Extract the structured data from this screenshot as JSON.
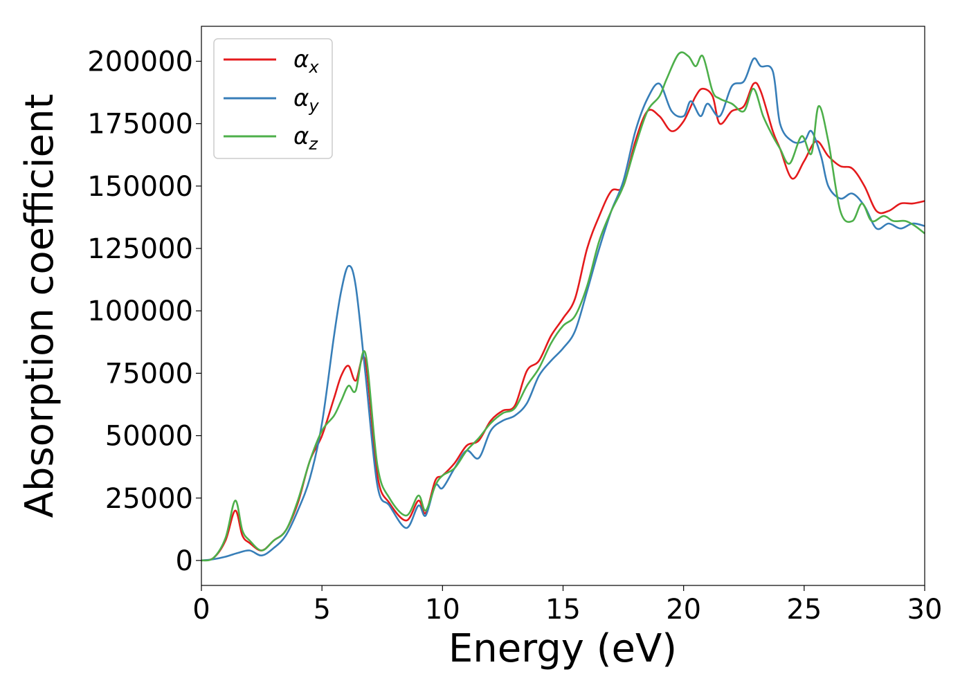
{
  "chart_data": {
    "type": "line",
    "title": "",
    "xlabel": "Energy (eV)",
    "ylabel": "Absorption coefficient",
    "xlim": [
      0,
      30
    ],
    "ylim": [
      -10000,
      214000
    ],
    "xticks": [
      0,
      5,
      10,
      15,
      20,
      25,
      30
    ],
    "yticks": [
      0,
      25000,
      50000,
      75000,
      100000,
      125000,
      150000,
      175000,
      200000
    ],
    "grid": false,
    "legend_position": "upper-left",
    "series": [
      {
        "name": "α",
        "subscript": "x",
        "color": "#e41a1c",
        "x": [
          0,
          0.5,
          1.0,
          1.4,
          1.7,
          2.0,
          2.5,
          3.0,
          3.5,
          4.0,
          4.5,
          5.0,
          5.5,
          5.8,
          6.1,
          6.4,
          6.8,
          7.3,
          7.8,
          8.5,
          9.0,
          9.3,
          9.7,
          10.0,
          10.5,
          11.0,
          11.5,
          12.0,
          12.5,
          13.0,
          13.5,
          14.0,
          14.5,
          15.0,
          15.5,
          16.0,
          16.5,
          17.0,
          17.5,
          18.0,
          18.5,
          19.0,
          19.5,
          20.0,
          20.5,
          20.8,
          21.2,
          21.5,
          22.0,
          22.5,
          22.9,
          23.2,
          23.7,
          24.0,
          24.5,
          25.0,
          25.5,
          26.0,
          26.5,
          27.0,
          27.5,
          28.0,
          28.5,
          29.0,
          29.5,
          30.0
        ],
        "y": [
          0,
          1000,
          8000,
          20000,
          10000,
          7000,
          4000,
          8000,
          12000,
          23000,
          40000,
          50000,
          65000,
          74000,
          78000,
          72000,
          80000,
          34000,
          23000,
          16000,
          24000,
          19000,
          32000,
          34000,
          39000,
          46000,
          48000,
          56000,
          60000,
          62000,
          76000,
          80000,
          90000,
          97000,
          105000,
          125000,
          138000,
          148000,
          150000,
          168000,
          180000,
          178000,
          172000,
          176000,
          186000,
          189000,
          186000,
          175000,
          180000,
          182000,
          191000,
          188000,
          172000,
          165000,
          153000,
          160000,
          168000,
          162000,
          158000,
          157000,
          150000,
          140000,
          140000,
          143000,
          143000,
          144000
        ]
      },
      {
        "name": "α",
        "subscript": "y",
        "color": "#377eb8",
        "x": [
          0,
          0.5,
          1.0,
          1.5,
          2.0,
          2.5,
          3.0,
          3.5,
          4.0,
          4.5,
          5.0,
          5.5,
          5.8,
          6.1,
          6.4,
          6.8,
          7.3,
          7.8,
          8.5,
          9.0,
          9.3,
          9.7,
          10.0,
          10.5,
          11.0,
          11.5,
          12.0,
          12.5,
          13.0,
          13.5,
          14.0,
          14.5,
          15.0,
          15.5,
          16.0,
          16.5,
          17.0,
          17.5,
          18.0,
          18.5,
          19.0,
          19.5,
          20.0,
          20.3,
          20.7,
          21.0,
          21.5,
          22.0,
          22.5,
          22.9,
          23.2,
          23.7,
          24.0,
          24.5,
          25.0,
          25.3,
          25.7,
          26.0,
          26.5,
          27.0,
          27.5,
          28.0,
          28.5,
          29.0,
          29.5,
          30.0
        ],
        "y": [
          0,
          500,
          1500,
          3000,
          4000,
          2000,
          5000,
          10000,
          20000,
          33000,
          55000,
          90000,
          108000,
          118000,
          110000,
          75000,
          30000,
          22000,
          13000,
          22000,
          18000,
          30000,
          29000,
          37000,
          44000,
          41000,
          52000,
          56000,
          58000,
          63000,
          74000,
          80000,
          85000,
          92000,
          108000,
          125000,
          140000,
          152000,
          172000,
          185000,
          191000,
          180000,
          178000,
          184000,
          178000,
          183000,
          178000,
          190000,
          192000,
          201000,
          198000,
          196000,
          175000,
          168000,
          168000,
          172000,
          162000,
          150000,
          145000,
          147000,
          142000,
          133000,
          135000,
          133000,
          135000,
          134000
        ]
      },
      {
        "name": "α",
        "subscript": "z",
        "color": "#4daf4a",
        "x": [
          0,
          0.5,
          1.0,
          1.4,
          1.7,
          2.0,
          2.5,
          3.0,
          3.5,
          4.0,
          4.5,
          5.0,
          5.5,
          5.8,
          6.1,
          6.4,
          6.8,
          7.3,
          7.8,
          8.5,
          9.0,
          9.3,
          9.7,
          10.0,
          10.5,
          11.0,
          11.5,
          12.0,
          12.5,
          13.0,
          13.5,
          14.0,
          14.5,
          15.0,
          15.5,
          16.0,
          16.5,
          17.0,
          17.5,
          18.0,
          18.5,
          19.0,
          19.3,
          19.8,
          20.2,
          20.5,
          20.8,
          21.2,
          21.5,
          22.0,
          22.5,
          22.9,
          23.3,
          23.7,
          24.0,
          24.4,
          24.9,
          25.3,
          25.6,
          26.0,
          26.5,
          27.0,
          27.4,
          27.8,
          28.3,
          28.7,
          29.2,
          29.6,
          30.0
        ],
        "y": [
          0,
          1000,
          9000,
          24000,
          12000,
          8000,
          4000,
          8000,
          12000,
          24000,
          40000,
          52000,
          58000,
          64000,
          70000,
          68000,
          83000,
          38000,
          25000,
          18000,
          26000,
          20000,
          30000,
          34000,
          37000,
          44000,
          49000,
          55000,
          59000,
          61000,
          70000,
          77000,
          87000,
          94000,
          98000,
          110000,
          128000,
          140000,
          150000,
          166000,
          180000,
          186000,
          193000,
          203000,
          202000,
          198000,
          202000,
          188000,
          185000,
          183000,
          180000,
          189000,
          178000,
          170000,
          165000,
          159000,
          170000,
          163000,
          182000,
          168000,
          140000,
          136000,
          143000,
          136000,
          138000,
          136000,
          136000,
          134000,
          131000
        ]
      }
    ]
  }
}
